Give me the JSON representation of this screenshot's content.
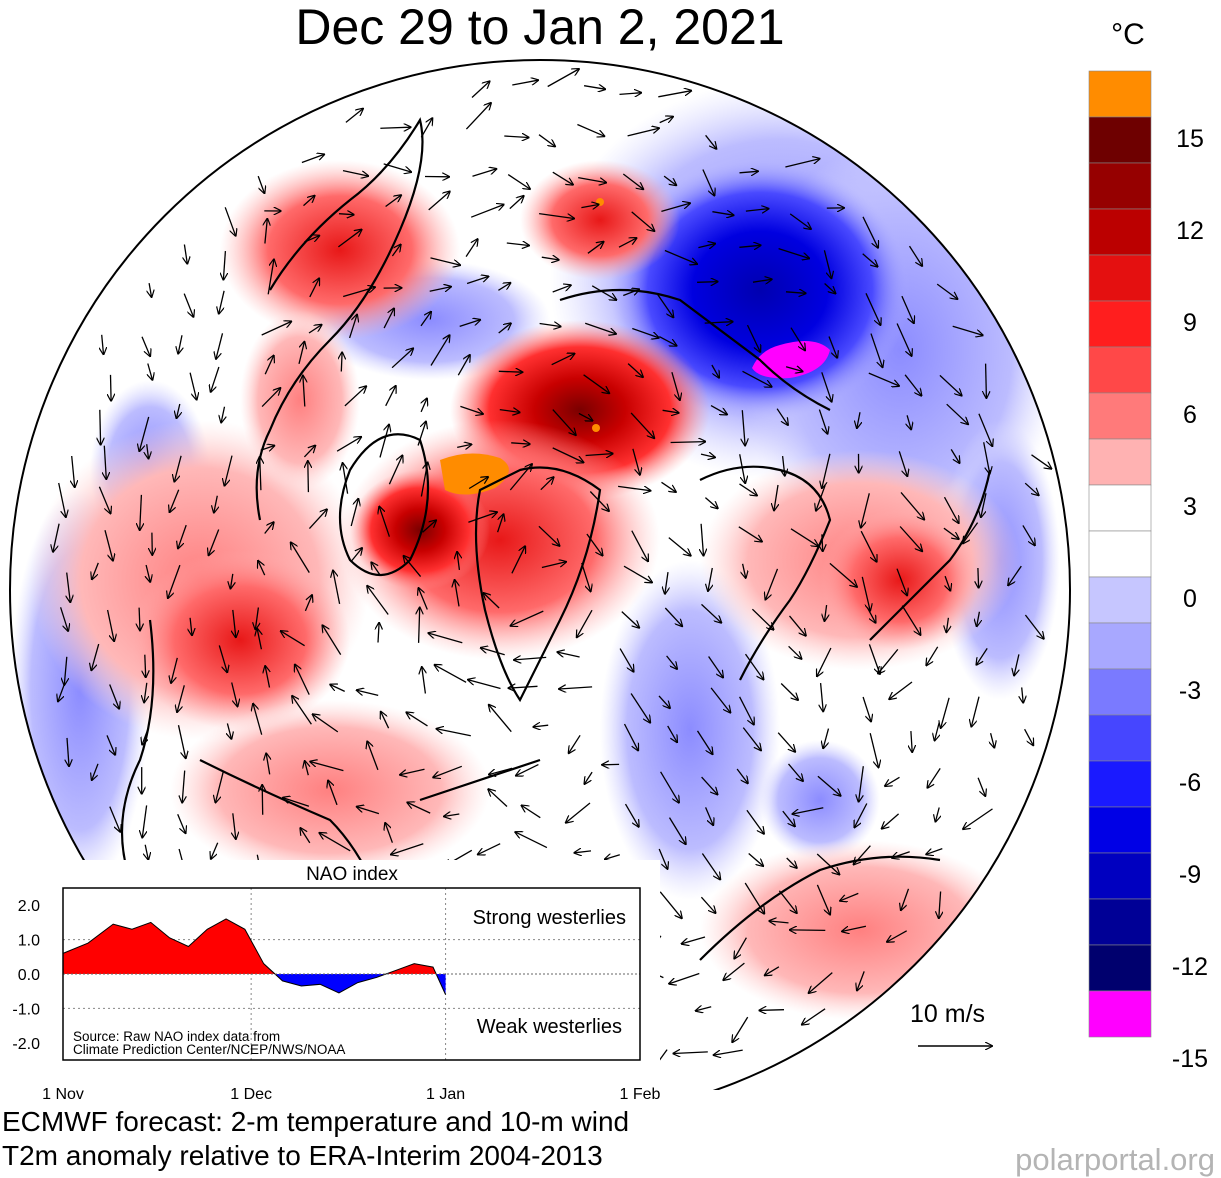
{
  "title": "Dec 29 to Jan 2, 2021",
  "legend": {
    "unit": "°C",
    "colors": [
      "#ff8c00",
      "#6e0000",
      "#960000",
      "#bb0000",
      "#e41010",
      "#ff1e1e",
      "#ff4848",
      "#ff7a7a",
      "#ffb2b2",
      "#ffffff",
      "#ffffff",
      "#c6c6ff",
      "#a8a8ff",
      "#7a7aff",
      "#4646ff",
      "#1a1aff",
      "#0000e6",
      "#0000c0",
      "#000096",
      "#00006e",
      "#ff00ff"
    ],
    "ticks": [
      "15",
      "12",
      "9",
      "6",
      "3",
      "0",
      "-3",
      "-6",
      "-9",
      "-12",
      "-15"
    ]
  },
  "wind_scale": {
    "label": "10 m/s"
  },
  "nao": {
    "title": "NAO index",
    "strong_label": "Strong westerlies",
    "weak_label": "Weak westerlies",
    "source_line1": "Source: Raw NAO index data from",
    "source_line2": "Climate Prediction Center/NCEP/NWS/NOAA",
    "y_ticks": [
      "2.0",
      "1.0",
      "0.0",
      "-1.0",
      "-2.0"
    ],
    "x_ticks": [
      "1 Nov",
      "1 Dec",
      "1 Jan",
      "1 Feb"
    ],
    "positive_color": "#ff0000",
    "negative_color": "#0000ff"
  },
  "chart_data": {
    "type": "area",
    "title": "NAO index",
    "ylim": [
      -2.5,
      2.5
    ],
    "x": [
      "2020-11-01",
      "2020-11-05",
      "2020-11-09",
      "2020-11-12",
      "2020-11-15",
      "2020-11-18",
      "2020-11-21",
      "2020-11-24",
      "2020-11-27",
      "2020-11-30",
      "2020-12-03",
      "2020-12-06",
      "2020-12-09",
      "2020-12-12",
      "2020-12-15",
      "2020-12-18",
      "2020-12-21",
      "2020-12-24",
      "2020-12-27",
      "2020-12-30",
      "2021-01-01"
    ],
    "values": [
      0.6,
      0.9,
      1.45,
      1.3,
      1.5,
      1.05,
      0.8,
      1.3,
      1.6,
      1.3,
      0.3,
      -0.2,
      -0.35,
      -0.3,
      -0.55,
      -0.25,
      -0.1,
      0.1,
      0.3,
      0.2,
      -0.6
    ]
  },
  "footer": {
    "line1": "ECMWF forecast: 2-m temperature and 10-m wind",
    "line2": "T2m anomaly relative to ERA-Interim 2004-2013"
  },
  "credit": "polarportal.org"
}
